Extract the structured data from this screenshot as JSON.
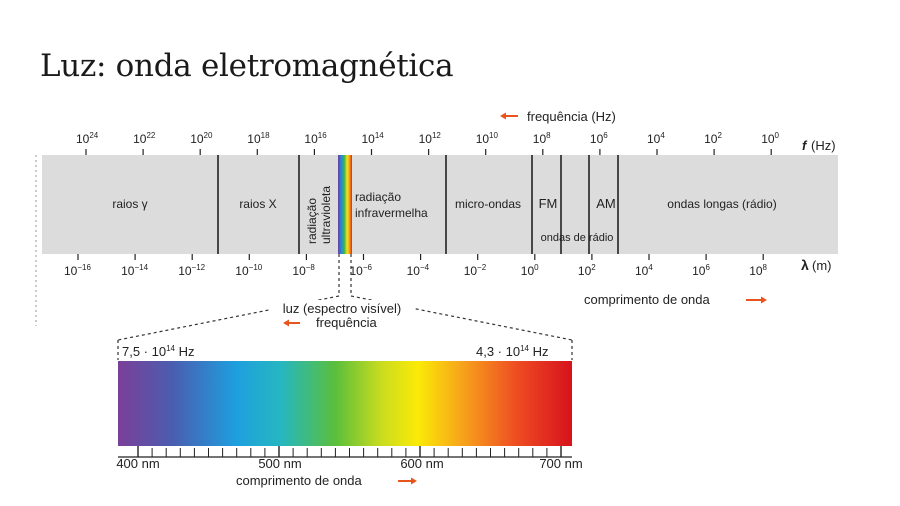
{
  "title": "Luz: onda eletromagnética",
  "colors": {
    "band": "#dcdcdc",
    "arrow": "#e8541e",
    "text": "#222222"
  },
  "top_axis": {
    "header": "frequência (Hz)",
    "unit_symbol": "f",
    "unit": "(Hz)",
    "exponents": [
      "24",
      "22",
      "20",
      "18",
      "16",
      "14",
      "12",
      "10",
      "8",
      "6",
      "4",
      "2",
      "0"
    ]
  },
  "bottom_axis": {
    "unit_symbol": "λ",
    "unit": "(m)",
    "exponents": [
      "−16",
      "−14",
      "−12",
      "−10",
      "−8",
      "−6",
      "−4",
      "−2",
      "0",
      "2",
      "4",
      "6",
      "8"
    ],
    "footer": "comprimento de onda"
  },
  "regions": {
    "gamma": "raios γ",
    "xray": "raios X",
    "uv_1": "radiação",
    "uv_2": "ultravioleta",
    "ir_1": "radiação",
    "ir_2": "infravermelha",
    "micro": "micro-ondas",
    "fm": "FM",
    "am": "AM",
    "radio_waves": "ondas de rádio",
    "long": "ondas longas (rádio)"
  },
  "visible": {
    "label": "luz (espectro visível)",
    "freq_label": "frequência",
    "left_freq": "7,5 · 10",
    "left_exp": "14",
    "right_freq": "4,3 · 10",
    "right_exp": "14",
    "hz": "Hz",
    "nm_ticks": [
      "400 nm",
      "500 nm",
      "600 nm",
      "700 nm"
    ],
    "wavelength_label": "comprimento de onda"
  }
}
